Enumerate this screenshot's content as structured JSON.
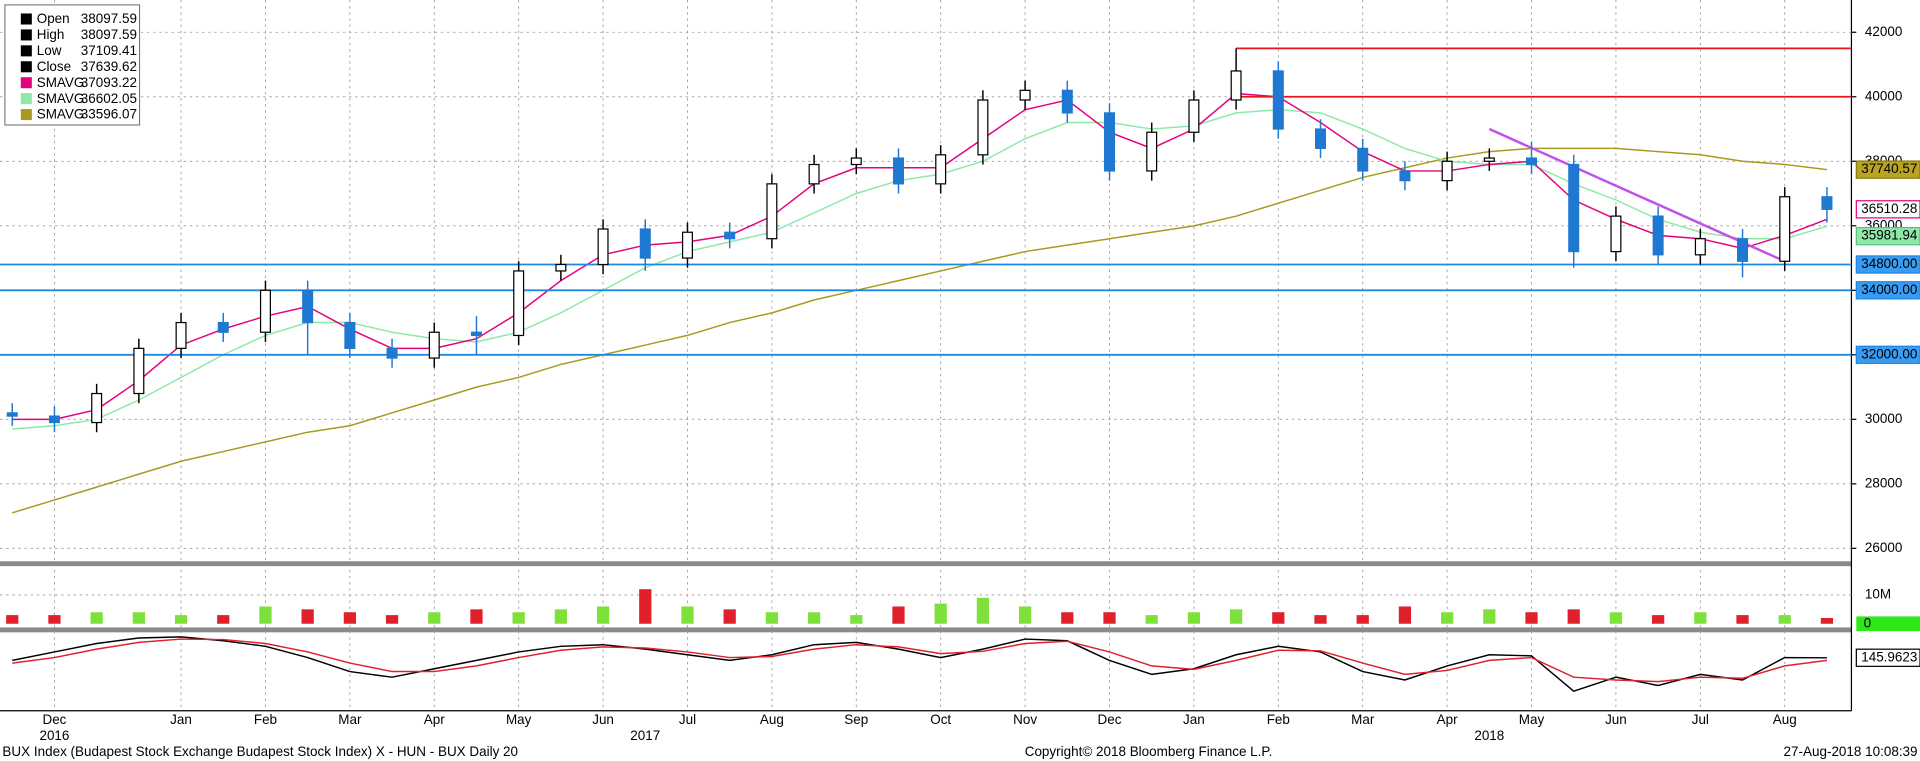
{
  "chart_data": {
    "type": "candlestick",
    "categories": [
      "",
      "Dec",
      null,
      null,
      "Jan",
      null,
      "Feb",
      null,
      "Mar",
      null,
      "Apr",
      null,
      "May",
      null,
      "Jun",
      null,
      "Jul",
      null,
      "Aug",
      null,
      "Sep",
      null,
      "Oct",
      null,
      "Nov",
      null,
      "Dec",
      null,
      "Jan",
      null,
      "Feb",
      null,
      "Mar",
      null,
      "Apr",
      null,
      "May",
      null,
      "Jun",
      null,
      "Jul",
      null,
      "Aug",
      null
    ],
    "years": [
      null,
      "2016",
      null,
      null,
      null,
      null,
      null,
      null,
      null,
      null,
      null,
      null,
      null,
      null,
      null,
      "2017",
      null,
      null,
      null,
      null,
      null,
      null,
      null,
      null,
      null,
      null,
      null,
      null,
      null,
      null,
      null,
      null,
      null,
      null,
      null,
      "2018",
      null,
      null,
      null,
      null,
      null,
      null,
      null,
      null
    ],
    "open": [
      30200,
      30100,
      29900,
      30800,
      32200,
      33000,
      32700,
      34000,
      33000,
      32200,
      31900,
      32700,
      32600,
      34600,
      34800,
      35900,
      35000,
      35800,
      35600,
      37300,
      37900,
      38100,
      37300,
      38200,
      39900,
      40200,
      39500,
      37700,
      38900,
      39900,
      40800,
      39000,
      38400,
      37700,
      37400,
      38000,
      38100,
      37900,
      35200,
      36300,
      35100,
      35600,
      34900,
      36900
    ],
    "high": [
      30500,
      30400,
      31100,
      32500,
      33300,
      33300,
      34300,
      34300,
      33300,
      32500,
      33000,
      33200,
      34900,
      35100,
      36200,
      36200,
      36100,
      36100,
      37600,
      38200,
      38400,
      38400,
      38500,
      40200,
      40500,
      40500,
      39800,
      39200,
      40200,
      41500,
      41100,
      39300,
      38700,
      38000,
      38300,
      38400,
      38600,
      38200,
      36600,
      36600,
      35900,
      35900,
      37200,
      37200
    ],
    "low": [
      29800,
      29600,
      29600,
      30500,
      31900,
      32400,
      32400,
      32000,
      31900,
      31600,
      31600,
      32000,
      32300,
      34300,
      34500,
      34600,
      34700,
      35300,
      35300,
      37000,
      37600,
      37000,
      37000,
      37900,
      39600,
      39200,
      37400,
      37400,
      38600,
      39600,
      38700,
      38100,
      37400,
      37100,
      37100,
      37700,
      37600,
      34700,
      34900,
      34800,
      34800,
      34400,
      34600,
      36100
    ],
    "close": [
      30100,
      29900,
      30800,
      32200,
      33000,
      32700,
      34000,
      33000,
      32200,
      31900,
      32700,
      32600,
      34600,
      34800,
      35900,
      35000,
      35800,
      35600,
      37300,
      37900,
      38100,
      37300,
      38200,
      39900,
      40200,
      39500,
      37700,
      38900,
      39900,
      40800,
      39000,
      38400,
      37700,
      37400,
      38000,
      38100,
      37900,
      35200,
      36300,
      35100,
      35600,
      34900,
      36900,
      36510.28
    ],
    "up_color": "#000000",
    "down_color": "#1f78d1",
    "ylim": [
      25600,
      43000
    ],
    "yticks": [
      26000,
      28000,
      30000,
      32000,
      34000,
      36000,
      38000,
      40000,
      42000
    ],
    "grid": true,
    "series": [
      {
        "color": "#e6007e",
        "values": [
          30000,
          30000,
          30300,
          31200,
          32300,
          32800,
          33200,
          33500,
          32800,
          32200,
          32200,
          32500,
          33300,
          34300,
          35100,
          35400,
          35500,
          35700,
          36300,
          37300,
          37800,
          37800,
          37800,
          38700,
          39600,
          39900,
          38900,
          38400,
          39000,
          40100,
          40000,
          39200,
          38300,
          37700,
          37700,
          37900,
          38000,
          36800,
          36200,
          35700,
          35600,
          35300,
          35700,
          36200
        ]
      },
      {
        "color": "#8ee8a8",
        "values": [
          29700,
          29800,
          30000,
          30600,
          31300,
          32000,
          32600,
          33000,
          33000,
          32700,
          32500,
          32400,
          32700,
          33300,
          34000,
          34700,
          35200,
          35500,
          35800,
          36400,
          37000,
          37400,
          37600,
          38000,
          38700,
          39200,
          39200,
          39000,
          39100,
          39500,
          39600,
          39500,
          39000,
          38400,
          38000,
          37900,
          37900,
          37300,
          36800,
          36200,
          35800,
          35600,
          35600,
          35981.94
        ]
      },
      {
        "color": "#a89a1e",
        "values": [
          27100,
          27500,
          27900,
          28300,
          28700,
          29000,
          29300,
          29600,
          29800,
          30200,
          30600,
          31000,
          31300,
          31700,
          32000,
          32300,
          32600,
          33000,
          33300,
          33700,
          34000,
          34300,
          34600,
          34900,
          35200,
          35400,
          35600,
          35800,
          36000,
          36300,
          36700,
          37100,
          37500,
          37800,
          38100,
          38300,
          38400,
          38400,
          38400,
          38300,
          38200,
          38000,
          37900,
          37740.57
        ]
      }
    ],
    "legend": [
      {
        "label": "Open",
        "value": 38097.59,
        "color": "#000000"
      },
      {
        "label": "High",
        "value": 38097.59,
        "color": "#000000"
      },
      {
        "label": "Low",
        "value": 37109.41,
        "color": "#000000"
      },
      {
        "label": "Close",
        "value": 37639.62,
        "color": "#000000"
      },
      {
        "label": "SMAVG",
        "value": 37093.22,
        "color": "#e6007e"
      },
      {
        "label": "SMAVG",
        "value": 36602.05,
        "color": "#8ee8a8"
      },
      {
        "label": "SMAVG",
        "value": 33596.07,
        "color": "#a89a1e"
      }
    ],
    "hlines": [
      {
        "value": 41500,
        "color": "#e8141e",
        "start_index": 29
      },
      {
        "value": 40000,
        "color": "#e8141e",
        "start_index": 29
      },
      {
        "value": 34800,
        "label": "34800.00",
        "color": "#1e88e5"
      },
      {
        "value": 34000,
        "label": "34000.00",
        "color": "#1e88e5"
      },
      {
        "value": 32000,
        "label": "32000.00",
        "color": "#1e88e5"
      }
    ],
    "trendline": {
      "color": "#c050e8",
      "from_index": 35,
      "from_value": 39000,
      "to_index": 42,
      "to_value": 34900
    },
    "volume": {
      "values": [
        3,
        3,
        4,
        4,
        3,
        3,
        6,
        5,
        4,
        3,
        4,
        5,
        4,
        5,
        6,
        12,
        6,
        5,
        4,
        4,
        3,
        6,
        7,
        9,
        6,
        4,
        4,
        3,
        4,
        5,
        4,
        3,
        3,
        6,
        4,
        5,
        4,
        5,
        4,
        3,
        4,
        3,
        3,
        2
      ],
      "ylim": [
        0,
        20
      ],
      "yticks": [
        0,
        {
          "value": 10,
          "label": "10M"
        }
      ],
      "up_color": "#7ee03a",
      "down_color": "#e0202a"
    },
    "indicator": {
      "ylim": [
        -800,
        600
      ],
      "series": [
        {
          "color": "#000000",
          "values": [
            100,
            250,
            400,
            500,
            520,
            450,
            350,
            150,
            -100,
            -200,
            -50,
            100,
            250,
            350,
            380,
            300,
            200,
            100,
            200,
            380,
            420,
            300,
            150,
            300,
            480,
            450,
            100,
            -150,
            -50,
            200,
            350,
            250,
            -100,
            -250,
            0,
            200,
            180,
            -450,
            -200,
            -350,
            -150,
            -250,
            150,
            145.9623
          ]
        },
        {
          "color": "#e0202a",
          "values": [
            50,
            150,
            300,
            420,
            480,
            470,
            400,
            250,
            50,
            -100,
            -100,
            0,
            150,
            280,
            340,
            320,
            250,
            150,
            170,
            300,
            380,
            340,
            220,
            260,
            400,
            440,
            250,
            0,
            -60,
            100,
            280,
            270,
            50,
            -150,
            -80,
            100,
            150,
            -200,
            -250,
            -280,
            -200,
            -220,
            0,
            100
          ]
        }
      ]
    },
    "footer": {
      "left": "BUX Index (Budapest Stock Exchange Budapest Stock Index) X - HUN - BUX  Daily 20",
      "center": "Copyright© 2018 Bloomberg Finance L.P.",
      "right": "27-Aug-2018 10:08:39"
    }
  }
}
